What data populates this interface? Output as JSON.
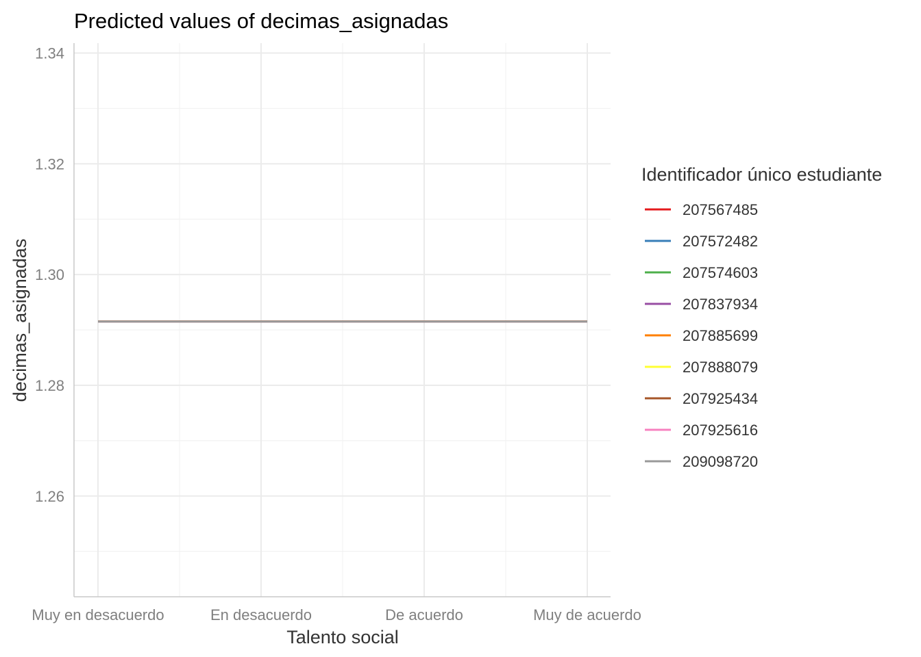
{
  "chart_data": {
    "type": "line",
    "title": "Predicted values of decimas_asignadas",
    "xlabel": "Talento social",
    "ylabel": "decimas_asignadas",
    "categories": [
      "Muy en desacuerdo",
      "En desacuerdo",
      "De acuerdo",
      "Muy de acuerdo"
    ],
    "ylim": [
      1.2418,
      1.3418
    ],
    "yticks": [
      "1.26",
      "1.28",
      "1.30",
      "1.32",
      "1.34"
    ],
    "grid": true,
    "legend": {
      "title": "Identificador único estudiante",
      "placement": "right"
    },
    "series": [
      {
        "name": "207567485",
        "color": "#e41a1c",
        "values": [
          1.2915,
          1.2915,
          1.2915,
          1.2915
        ]
      },
      {
        "name": "207572482",
        "color": "#377eb8",
        "values": [
          1.2915,
          1.2915,
          1.2915,
          1.2915
        ]
      },
      {
        "name": "207574603",
        "color": "#4daf4a",
        "values": [
          1.2915,
          1.2915,
          1.2915,
          1.2915
        ]
      },
      {
        "name": "207837934",
        "color": "#984ea3",
        "values": [
          1.2915,
          1.2915,
          1.2915,
          1.2915
        ]
      },
      {
        "name": "207885699",
        "color": "#ff7f00",
        "values": [
          1.2915,
          1.2915,
          1.2915,
          1.2915
        ]
      },
      {
        "name": "207888079",
        "color": "#ffff33",
        "values": [
          1.2915,
          1.2915,
          1.2915,
          1.2915
        ]
      },
      {
        "name": "207925434",
        "color": "#a65628",
        "values": [
          1.2915,
          1.2915,
          1.2915,
          1.2915
        ]
      },
      {
        "name": "207925616",
        "color": "#f781bf",
        "values": [
          1.2915,
          1.2915,
          1.2915,
          1.2915
        ]
      },
      {
        "name": "209098720",
        "color": "#999999",
        "values": [
          1.2915,
          1.2915,
          1.2915,
          1.2915
        ]
      }
    ]
  }
}
